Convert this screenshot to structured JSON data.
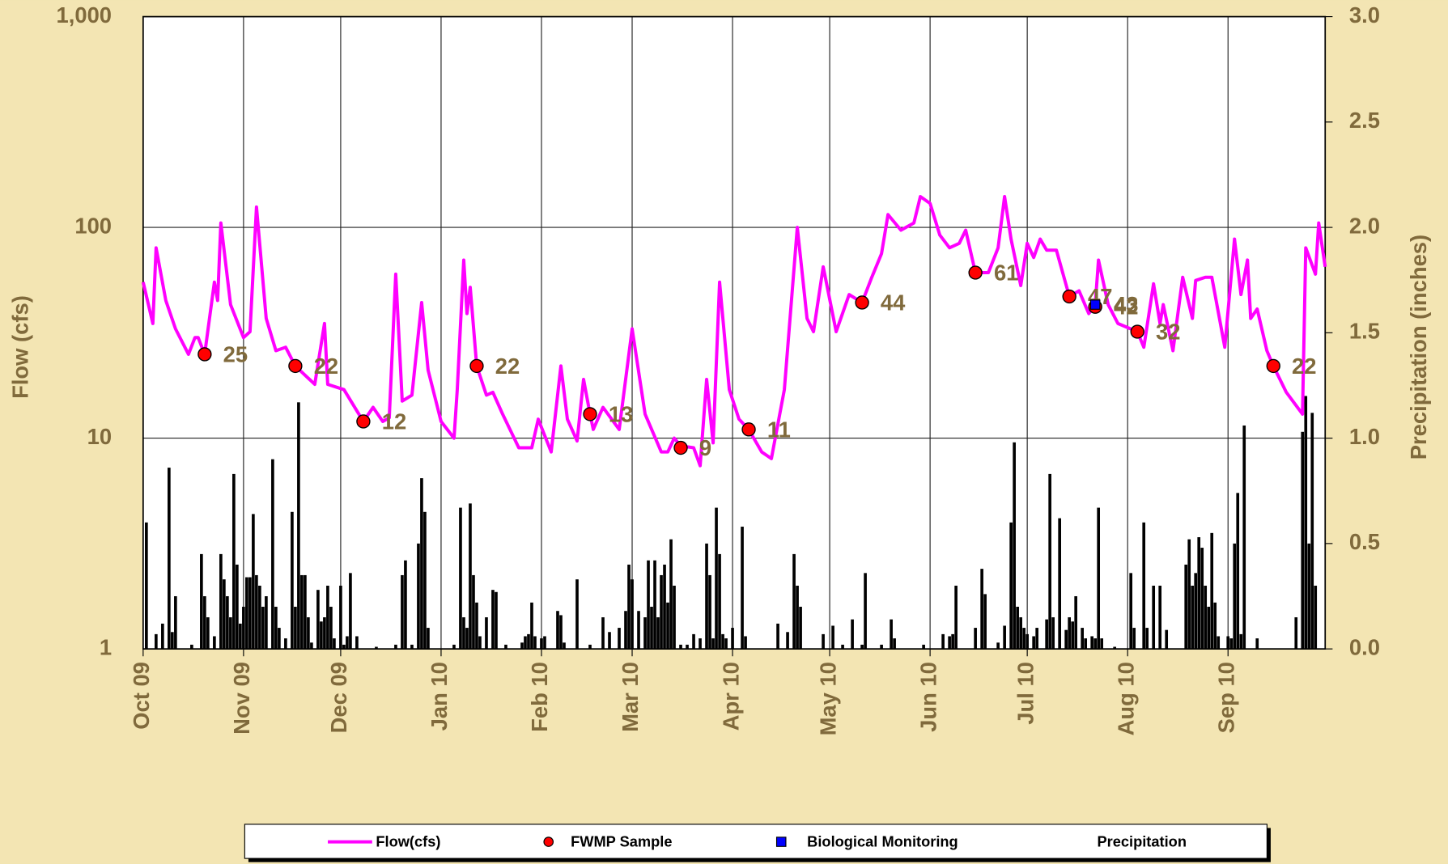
{
  "chart_data": {
    "type": "line",
    "ylabel": "Flow (cfs)",
    "y2label": "Precipitation (inches)",
    "xlim": [
      0,
      365
    ],
    "xticks": [
      {
        "value": 0,
        "label": "Oct 09"
      },
      {
        "value": 31,
        "label": "Nov 09"
      },
      {
        "value": 61,
        "label": "Dec 09"
      },
      {
        "value": 92,
        "label": "Jan 10"
      },
      {
        "value": 123,
        "label": "Feb 10"
      },
      {
        "value": 151,
        "label": "Mar 10"
      },
      {
        "value": 182,
        "label": "Apr 10"
      },
      {
        "value": 212,
        "label": "May 10"
      },
      {
        "value": 243,
        "label": "Jun 10"
      },
      {
        "value": 273,
        "label": "Jul 10"
      },
      {
        "value": 304,
        "label": "Aug 10"
      },
      {
        "value": 335,
        "label": "Sep 10"
      }
    ],
    "ylim": [
      1,
      1000
    ],
    "log_y": true,
    "yticks": [
      1,
      10,
      100,
      {
        "value": 1000,
        "label": "1,000"
      }
    ],
    "y2lim": [
      0,
      3
    ],
    "y2ticks": [
      {
        "value": 0,
        "label": "0.0"
      },
      0.5,
      {
        "value": 1,
        "label": "1.0"
      },
      1.5,
      {
        "value": 2,
        "label": "2.0"
      },
      2.5,
      {
        "value": 3,
        "label": "3.0"
      }
    ],
    "grid": true,
    "legend": "bottom",
    "series": [
      {
        "name": "Flow(cfs)",
        "type": "line",
        "color": "#ff00ff",
        "x": [
          0,
          3,
          4,
          7,
          10,
          14,
          16,
          17,
          19,
          22,
          23,
          24,
          27,
          31,
          33,
          35,
          38,
          41,
          44,
          47,
          53,
          56,
          57,
          62,
          68,
          71,
          74,
          76,
          78,
          80,
          83,
          86,
          88,
          92,
          96,
          97,
          99,
          100,
          101,
          103,
          106,
          108,
          111,
          116,
          120,
          122,
          126,
          129,
          131,
          134,
          136,
          138,
          139,
          142,
          147,
          151,
          155,
          160,
          162,
          164,
          166,
          170,
          172,
          174,
          176,
          178,
          181,
          184,
          187,
          191,
          194,
          198,
          202,
          205,
          207,
          210,
          214,
          218,
          222,
          225,
          228,
          230,
          234,
          238,
          240,
          243,
          246,
          249,
          252,
          254,
          257,
          261,
          264,
          266,
          268,
          271,
          273,
          275,
          277,
          279,
          282,
          286,
          289,
          292,
          294,
          295,
          298,
          301,
          307,
          309,
          312,
          314,
          315,
          318,
          321,
          324,
          325,
          328,
          330,
          334,
          337,
          339,
          341,
          342,
          344,
          347,
          349,
          353,
          358,
          359,
          362,
          363,
          365
        ],
        "values": [
          55,
          35,
          80,
          45,
          33,
          25,
          30,
          30,
          25,
          55,
          45,
          105,
          43,
          30,
          32,
          125,
          37,
          26,
          27,
          22,
          18,
          35,
          18,
          17,
          12,
          14,
          12,
          12.5,
          60,
          15,
          16,
          44,
          21,
          12,
          10,
          17,
          70,
          39,
          52,
          22,
          16,
          16.5,
          13,
          9,
          9,
          12.3,
          8.6,
          22,
          12.3,
          9.7,
          19,
          13,
          11,
          14,
          11,
          33,
          13,
          8.6,
          8.6,
          10,
          9.2,
          9,
          7.4,
          19,
          9.5,
          55,
          17,
          12.3,
          11,
          8.6,
          8,
          17,
          100,
          37,
          32,
          65,
          32,
          48,
          44,
          58,
          75,
          115,
          97,
          105,
          140,
          130,
          92,
          80,
          84,
          97,
          61,
          61,
          80,
          140,
          88,
          53,
          84,
          72,
          88,
          78,
          78,
          47,
          50,
          39,
          43,
          70,
          43,
          35,
          32,
          27,
          54,
          35,
          43,
          26,
          58,
          37,
          56,
          58,
          58,
          27,
          88,
          48,
          70,
          37,
          41,
          26,
          22,
          16.5,
          13,
          80,
          60,
          105,
          65
        ]
      },
      {
        "name": "FWMP Sample",
        "type": "scatter",
        "marker": "circle",
        "color": "#ff0000",
        "show_labels": true,
        "x": [
          19,
          47,
          68,
          103,
          138,
          166,
          187,
          222,
          257,
          286,
          294,
          307,
          349
        ],
        "values": [
          25,
          22,
          12,
          22,
          13,
          9,
          11,
          44,
          61,
          47,
          42,
          32,
          22
        ]
      },
      {
        "name": "Biological Monitoring",
        "type": "scatter",
        "marker": "square",
        "color": "#0000ff",
        "show_labels": true,
        "x": [
          294
        ],
        "values": [
          43
        ]
      },
      {
        "name": "Precipitation",
        "type": "bar",
        "axis": "y2",
        "color": "#000000",
        "x": [
          1,
          4,
          6,
          8,
          9,
          10,
          15,
          18,
          19,
          20,
          22,
          24,
          25,
          26,
          27,
          28,
          29,
          30,
          31,
          32,
          33,
          34,
          35,
          36,
          37,
          38,
          40,
          41,
          42,
          44,
          46,
          47,
          48,
          49,
          50,
          51,
          52,
          54,
          55,
          56,
          57,
          58,
          59,
          61,
          62,
          63,
          64,
          66,
          72,
          78,
          80,
          81,
          83,
          85,
          86,
          87,
          88,
          96,
          98,
          99,
          100,
          101,
          102,
          103,
          104,
          106,
          108,
          109,
          112,
          117,
          118,
          119,
          120,
          121,
          123,
          124,
          128,
          129,
          130,
          134,
          138,
          142,
          144,
          147,
          149,
          150,
          151,
          153,
          155,
          156,
          157,
          158,
          159,
          160,
          161,
          162,
          163,
          164,
          166,
          168,
          170,
          172,
          174,
          175,
          176,
          177,
          178,
          179,
          180,
          182,
          185,
          186,
          196,
          199,
          201,
          202,
          203,
          210,
          213,
          216,
          219,
          222,
          223,
          228,
          231,
          232,
          241,
          247,
          249,
          250,
          251,
          257,
          259,
          260,
          264,
          266,
          268,
          269,
          270,
          271,
          272,
          273,
          275,
          276,
          279,
          280,
          281,
          283,
          285,
          286,
          287,
          288,
          290,
          291,
          293,
          294,
          295,
          296,
          300,
          305,
          306,
          309,
          310,
          312,
          314,
          316,
          322,
          323,
          324,
          325,
          326,
          327,
          328,
          329,
          330,
          331,
          332,
          335,
          336,
          337,
          338,
          339,
          340,
          344,
          356,
          358,
          359,
          360,
          361,
          362
        ],
        "values": [
          0.6,
          0.07,
          0.12,
          0.86,
          0.08,
          0.25,
          0.02,
          0.45,
          0.25,
          0.15,
          0.06,
          0.45,
          0.33,
          0.25,
          0.15,
          0.83,
          0.4,
          0.12,
          0.2,
          0.34,
          0.34,
          0.64,
          0.35,
          0.3,
          0.2,
          0.25,
          0.9,
          0.2,
          0.1,
          0.05,
          0.65,
          0.2,
          1.17,
          0.35,
          0.35,
          0.15,
          0.03,
          0.28,
          0.13,
          0.15,
          0.3,
          0.2,
          0.05,
          0.3,
          0.02,
          0.06,
          0.36,
          0.06,
          0.01,
          0.02,
          0.35,
          0.42,
          0.02,
          0.5,
          0.81,
          0.65,
          0.1,
          0.02,
          0.67,
          0.15,
          0.1,
          0.69,
          0.35,
          0.22,
          0.06,
          0.15,
          0.28,
          0.27,
          0.02,
          0.03,
          0.06,
          0.07,
          0.22,
          0.06,
          0.05,
          0.06,
          0.18,
          0.16,
          0.03,
          0.33,
          0.02,
          0.15,
          0.08,
          0.1,
          0.18,
          0.4,
          0.33,
          0.18,
          0.15,
          0.42,
          0.2,
          0.42,
          0.15,
          0.35,
          0.4,
          0.22,
          0.52,
          0.3,
          0.02,
          0.02,
          0.07,
          0.05,
          0.5,
          0.35,
          0.05,
          0.67,
          0.45,
          0.07,
          0.05,
          0.1,
          0.58,
          0.06,
          0.12,
          0.08,
          0.45,
          0.3,
          0.2,
          0.07,
          0.11,
          0.02,
          0.14,
          0.02,
          0.36,
          0.02,
          0.14,
          0.05,
          0.02,
          0.07,
          0.06,
          0.07,
          0.3,
          0.1,
          0.38,
          0.26,
          0.03,
          0.11,
          0.6,
          0.98,
          0.2,
          0.15,
          0.1,
          0.07,
          0.06,
          0.1,
          0.14,
          0.83,
          0.15,
          0.62,
          0.09,
          0.15,
          0.13,
          0.25,
          0.1,
          0.05,
          0.06,
          0.05,
          0.67,
          0.05,
          0.01,
          0.36,
          0.1,
          0.6,
          0.1,
          0.3,
          0.3,
          0.09,
          0.4,
          0.52,
          0.3,
          0.36,
          0.53,
          0.48,
          0.3,
          0.2,
          0.55,
          0.22,
          0.06,
          0.06,
          0.05,
          0.5,
          0.74,
          0.07,
          1.06,
          0.05,
          0.15,
          1.03,
          1.2,
          0.5,
          1.12,
          0.3
        ]
      }
    ]
  }
}
